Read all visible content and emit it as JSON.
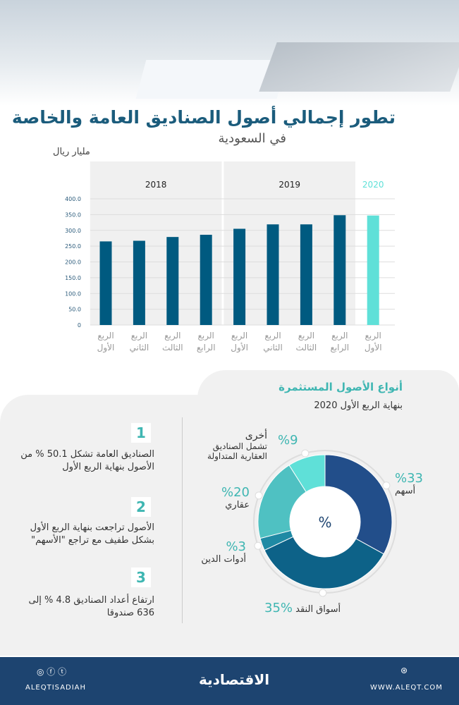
{
  "header": {
    "title": "تطور إجمالي أصول الصناديق العامة والخاصة",
    "subtitle": "في السعودية",
    "unit": "مليار ريال"
  },
  "chart_data": [
    {
      "type": "bar",
      "title": "تطور إجمالي أصول الصناديق العامة والخاصة",
      "subtitle": "في السعودية",
      "ylabel": "مليار ريال",
      "ylim": [
        0,
        400
      ],
      "yticks": [
        "0",
        "50.0",
        "100.0",
        "150.0",
        "200.0",
        "250.0",
        "300.0",
        "350.0",
        "400.0"
      ],
      "years": [
        {
          "label": "2018",
          "quarters": 4
        },
        {
          "label": "2019",
          "quarters": 4
        },
        {
          "label": "2020",
          "quarters": 1
        }
      ],
      "categories": [
        "الربع الأول",
        "الربع الثاني",
        "الربع الثالث",
        "الربع الرابع",
        "الربع الأول",
        "الربع الثاني",
        "الربع الثالث",
        "الربع الرابع",
        "الربع الأول"
      ],
      "values": [
        265,
        267,
        279,
        286,
        305,
        319,
        319,
        348,
        347
      ],
      "colors": {
        "bar": "#005a80",
        "highlight": "#5fe0d8"
      },
      "grid": true
    },
    {
      "type": "pie",
      "title": "أنواع الأصول المستثمرة",
      "subtitle": "بنهاية الربع الأول 2020",
      "center_label": "%",
      "slices": [
        {
          "label": "أسهم",
          "value": 33,
          "pct": "%33",
          "color": "#224e8a"
        },
        {
          "label": "أسواق النقد",
          "value": 35,
          "pct": "%35",
          "color": "#0d6288"
        },
        {
          "label": "أدوات الدين",
          "value": 3,
          "pct": "%3",
          "color": "#1f8aa4"
        },
        {
          "label": "عقاري",
          "value": 20,
          "pct": "%20",
          "color": "#4fc1c2"
        },
        {
          "label": "أخرى",
          "value": 9,
          "pct": "%9",
          "color": "#5fe0d8",
          "note": "تشمل الصناديق العقارية المتداولة"
        }
      ]
    }
  ],
  "notes": [
    {
      "num": "1",
      "text": "الصناديق العامة تشكل 50.1 % من الأصول بنهاية الربع الأول"
    },
    {
      "num": "2",
      "text": "الأصول تراجعت بنهاية الربع الأول بشكل طفيف مع تراجع \"الأسهم\""
    },
    {
      "num": "3",
      "text": "ارتفاع أعداد الصناديق 4.8 % إلى 636 صندوقا"
    }
  ],
  "footer": {
    "handle": "ALEQTISADIAH",
    "logo": "الاقتصادية",
    "website": "WWW.ALEQT.COM",
    "social_icons": [
      "instagram-icon",
      "facebook-icon",
      "twitter-icon"
    ],
    "web_icon": "globe-icon"
  }
}
